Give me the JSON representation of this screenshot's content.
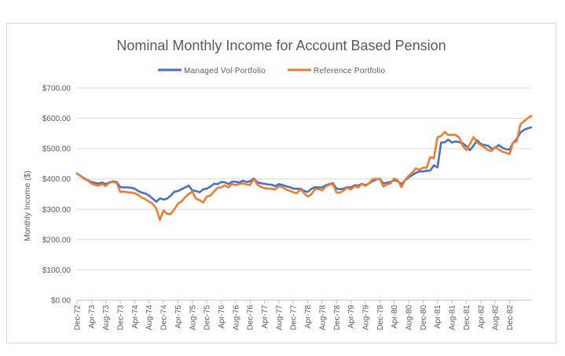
{
  "chart_data": {
    "type": "line",
    "title": "Nominal Monthly Income for Account Based Pension",
    "xlabel": "",
    "ylabel": "Monthly Income ($)",
    "ylim": [
      0,
      700
    ],
    "y_ticks": [
      "$0.00",
      "$100.00",
      "$200.00",
      "$300.00",
      "$400.00",
      "$500.00",
      "$600.00",
      "$700.00"
    ],
    "y_tick_values": [
      0,
      100,
      200,
      300,
      400,
      500,
      600,
      700
    ],
    "grid": "horizontal",
    "legend_position": "top",
    "x_ticks": [
      "Dec-72",
      "Apr-73",
      "Aug-73",
      "Dec-73",
      "Apr-74",
      "Aug-74",
      "Dec-74",
      "Apr-75",
      "Aug-75",
      "Dec-75",
      "Apr-76",
      "Aug-76",
      "Dec-76",
      "Apr-77",
      "Aug-77",
      "Dec-77",
      "Apr-78",
      "Aug-78",
      "Dec-78",
      "Apr-79",
      "Aug-79",
      "Dec-79",
      "Apr-80",
      "Aug-80",
      "Dec-80",
      "Apr-81",
      "Aug-81",
      "Dec-81",
      "Apr-82",
      "Aug-82",
      "Dec-82"
    ],
    "series": [
      {
        "name": "Managed Vol Portfolio",
        "color": "#4472C4",
        "values": [
          418,
          410,
          402,
          396,
          390,
          387,
          385,
          388,
          383,
          389,
          392,
          390,
          373,
          372,
          372,
          371,
          368,
          360,
          355,
          352,
          345,
          335,
          325,
          336,
          332,
          335,
          345,
          358,
          360,
          366,
          372,
          378,
          362,
          360,
          356,
          366,
          368,
          375,
          384,
          383,
          390,
          389,
          383,
          391,
          391,
          388,
          394,
          390,
          392,
          402,
          389,
          386,
          384,
          382,
          381,
          376,
          383,
          380,
          376,
          373,
          368,
          367,
          368,
          360,
          357,
          367,
          373,
          372,
          372,
          379,
          383,
          386,
          368,
          366,
          368,
          373,
          372,
          379,
          378,
          384,
          380,
          385,
          393,
          398,
          401,
          385,
          388,
          390,
          396,
          392,
          383,
          395,
          405,
          413,
          420,
          425,
          425,
          427,
          428,
          445,
          438,
          520,
          521,
          530,
          520,
          524,
          521,
          518,
          508,
          495,
          510,
          528,
          515,
          512,
          510,
          500,
          502,
          512,
          503,
          498,
          497,
          520,
          532,
          553,
          562,
          567,
          570
        ]
      },
      {
        "name": "Reference Portfolio",
        "color": "#ED7D31",
        "values": [
          418,
          410,
          400,
          395,
          385,
          380,
          378,
          383,
          377,
          388,
          390,
          387,
          357,
          358,
          356,
          355,
          353,
          347,
          338,
          333,
          325,
          318,
          302,
          265,
          296,
          285,
          284,
          300,
          318,
          326,
          340,
          350,
          358,
          335,
          330,
          322,
          342,
          345,
          358,
          371,
          372,
          379,
          372,
          383,
          380,
          383,
          385,
          382,
          380,
          400,
          382,
          374,
          370,
          368,
          368,
          365,
          376,
          373,
          365,
          361,
          356,
          353,
          366,
          353,
          342,
          349,
          366,
          367,
          362,
          375,
          381,
          383,
          355,
          355,
          362,
          371,
          365,
          376,
          372,
          383,
          377,
          385,
          399,
          400,
          400,
          375,
          382,
          385,
          402,
          395,
          373,
          396,
          410,
          420,
          435,
          430,
          437,
          437,
          472,
          468,
          537,
          542,
          555,
          545,
          546,
          545,
          537,
          510,
          495,
          515,
          538,
          520,
          512,
          505,
          495,
          492,
          506,
          497,
          490,
          486,
          482,
          520,
          524,
          580,
          590,
          600,
          608
        ]
      }
    ]
  }
}
